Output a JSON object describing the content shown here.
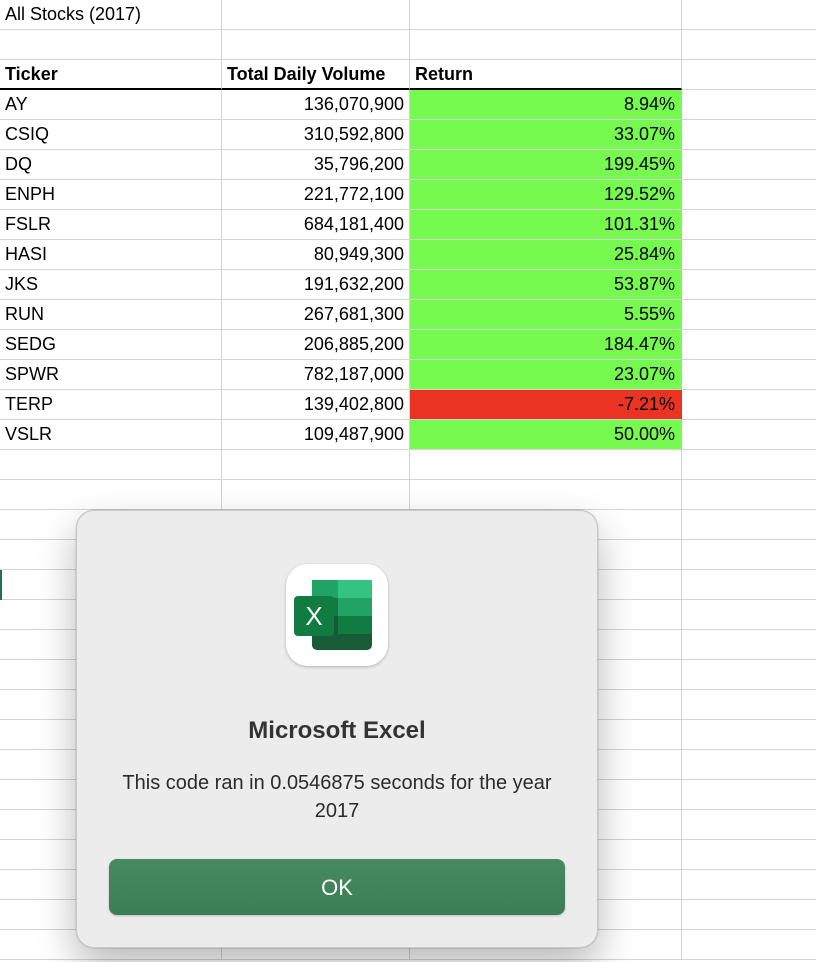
{
  "sheet": {
    "title": "All Stocks (2017)",
    "headers": {
      "ticker": "Ticker",
      "volume": "Total Daily Volume",
      "return": "Return"
    },
    "rows": [
      {
        "ticker": "AY",
        "volume": "136,070,900",
        "return": "8.94%",
        "status": "positive"
      },
      {
        "ticker": "CSIQ",
        "volume": "310,592,800",
        "return": "33.07%",
        "status": "positive"
      },
      {
        "ticker": "DQ",
        "volume": "35,796,200",
        "return": "199.45%",
        "status": "positive"
      },
      {
        "ticker": "ENPH",
        "volume": "221,772,100",
        "return": "129.52%",
        "status": "positive"
      },
      {
        "ticker": "FSLR",
        "volume": "684,181,400",
        "return": "101.31%",
        "status": "positive"
      },
      {
        "ticker": "HASI",
        "volume": "80,949,300",
        "return": "25.84%",
        "status": "positive"
      },
      {
        "ticker": "JKS",
        "volume": "191,632,200",
        "return": "53.87%",
        "status": "positive"
      },
      {
        "ticker": "RUN",
        "volume": "267,681,300",
        "return": "5.55%",
        "status": "positive"
      },
      {
        "ticker": "SEDG",
        "volume": "206,885,200",
        "return": "184.47%",
        "status": "positive"
      },
      {
        "ticker": "SPWR",
        "volume": "782,187,000",
        "return": "23.07%",
        "status": "positive"
      },
      {
        "ticker": "TERP",
        "volume": "139,402,800",
        "return": "-7.21%",
        "status": "negative"
      },
      {
        "ticker": "VSLR",
        "volume": "109,487,900",
        "return": "50.00%",
        "status": "positive"
      }
    ],
    "colors": {
      "positive": "#76fa4f",
      "negative": "#ea3323",
      "gridline": "#d4d4d4"
    }
  },
  "dialog": {
    "icon": "microsoft-excel-icon",
    "title": "Microsoft Excel",
    "message": "This code ran in 0.0546875 seconds for the year 2017",
    "ok_label": "OK",
    "accent": "#3f8259"
  }
}
